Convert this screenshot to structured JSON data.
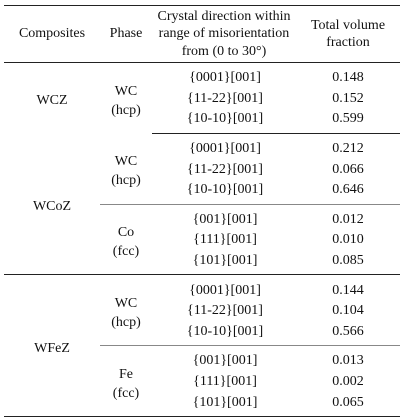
{
  "headers": {
    "composites": "Composites",
    "phase": "Phase",
    "direction_line1": "Crystal direction within",
    "direction_line2": "range of misorientation",
    "direction_line3": "from (0 to 30°)",
    "fraction_line1": "Total volume",
    "fraction_line2": "fraction"
  },
  "groups": [
    {
      "composite": "WCZ",
      "phases": [
        {
          "name": "WC",
          "structure": "(hcp)",
          "rows": [
            {
              "direction": "{0001}[001]",
              "fraction": "0.148"
            },
            {
              "direction": "{11-22}[001]",
              "fraction": "0.152"
            },
            {
              "direction": "{10-10}[001]",
              "fraction": "0.599"
            }
          ]
        }
      ]
    },
    {
      "composite": "WCoZ",
      "phases": [
        {
          "name": "WC",
          "structure": "(hcp)",
          "rows": [
            {
              "direction": "{0001}[001]",
              "fraction": "0.212"
            },
            {
              "direction": "{11-22}[001]",
              "fraction": "0.066"
            },
            {
              "direction": "{10-10}[001]",
              "fraction": "0.646"
            }
          ]
        },
        {
          "name": "Co",
          "structure": "(fcc)",
          "rows": [
            {
              "direction": "{001}[001]",
              "fraction": "0.012"
            },
            {
              "direction": "{111}[001]",
              "fraction": "0.010"
            },
            {
              "direction": "{101}[001]",
              "fraction": "0.085"
            }
          ]
        }
      ]
    },
    {
      "composite": "WFeZ",
      "phases": [
        {
          "name": "WC",
          "structure": "(hcp)",
          "rows": [
            {
              "direction": "{0001}[001]",
              "fraction": "0.144"
            },
            {
              "direction": "{11-22}[001]",
              "fraction": "0.104"
            },
            {
              "direction": "{10-10}[001]",
              "fraction": "0.566"
            }
          ]
        },
        {
          "name": "Fe",
          "structure": "(fcc)",
          "rows": [
            {
              "direction": "{001}[001]",
              "fraction": "0.013"
            },
            {
              "direction": "{111}[001]",
              "fraction": "0.002"
            },
            {
              "direction": "{101}[001]",
              "fraction": "0.065"
            }
          ]
        }
      ]
    }
  ]
}
